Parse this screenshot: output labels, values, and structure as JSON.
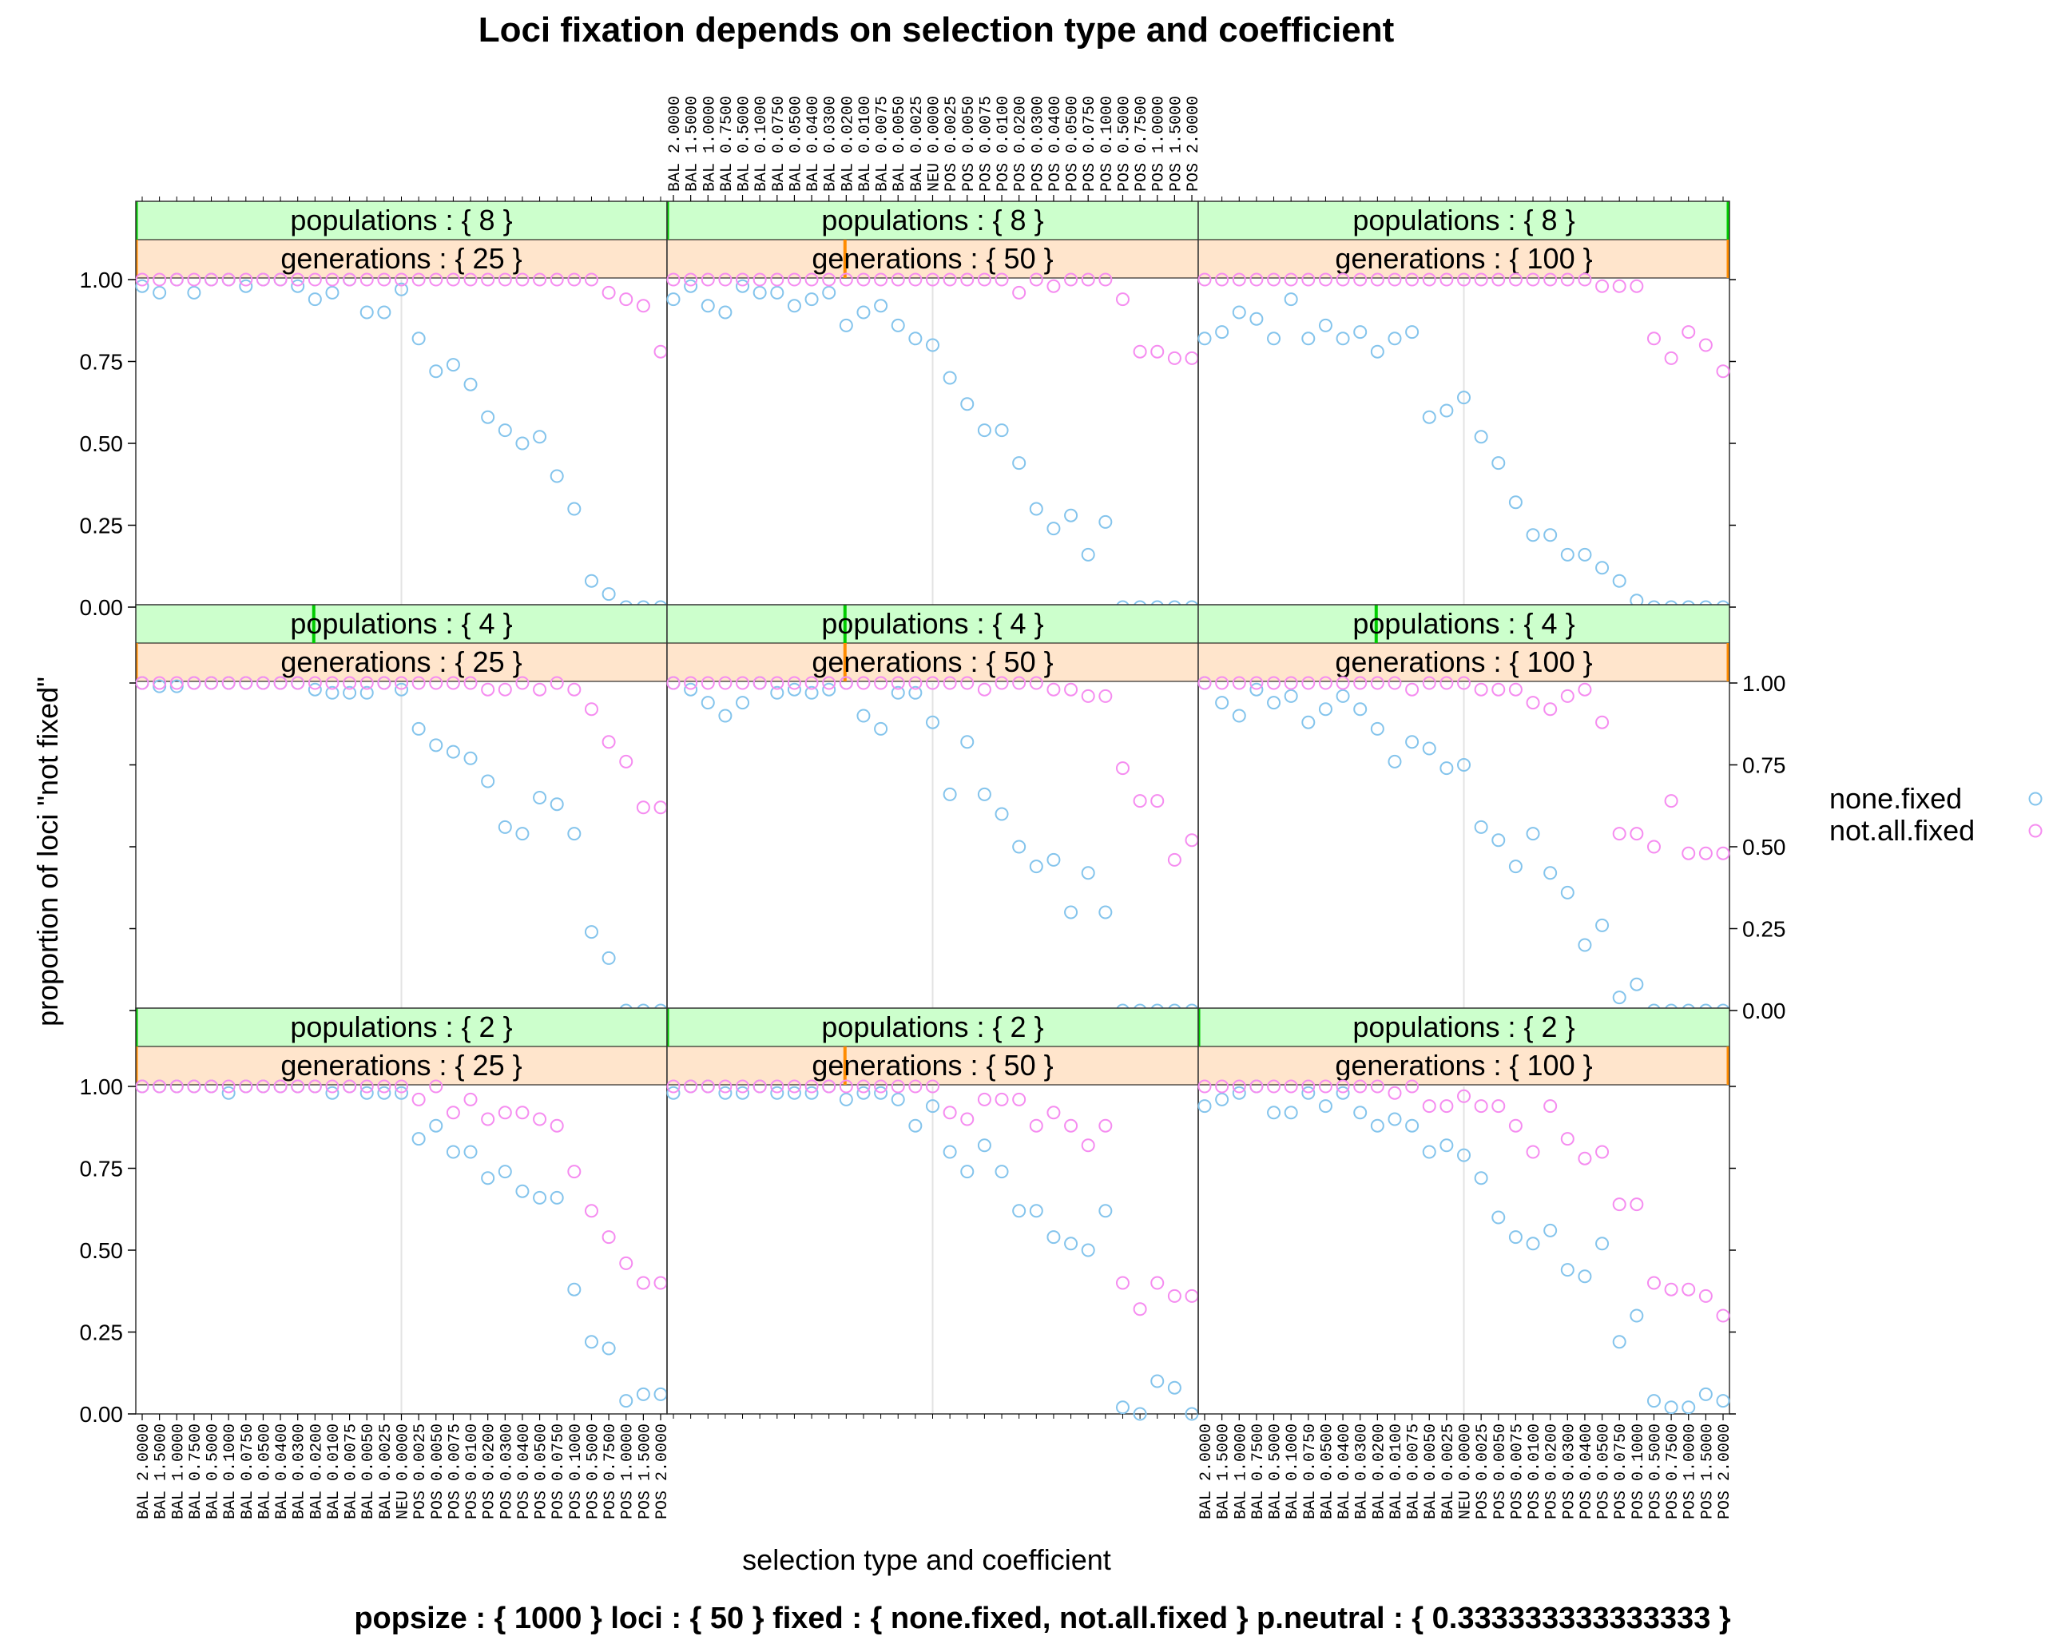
{
  "chart_data": {
    "type": "scatter",
    "title": "Loci fixation depends on selection type and coefficient",
    "xlabel": "selection type and coefficient",
    "ylabel": "proportion of loci \"not fixed\"",
    "subtitle": "popsize : { 1000 } loci : { 50 } fixed : { none.fixed, not.all.fixed } p.neutral : { 0.333333333333333 }",
    "ylim": [
      0,
      1
    ],
    "y_ticks": [
      "0.00",
      "0.25",
      "0.50",
      "0.75",
      "1.00"
    ],
    "categories": [
      "BAL 2.0000",
      "BAL 1.5000",
      "BAL 1.0000",
      "BAL 0.7500",
      "BAL 0.5000",
      "BAL 0.1000",
      "BAL 0.0750",
      "BAL 0.0500",
      "BAL 0.0400",
      "BAL 0.0300",
      "BAL 0.0200",
      "BAL 0.0100",
      "BAL 0.0075",
      "BAL 0.0050",
      "BAL 0.0025",
      "NEU 0.0000",
      "POS 0.0025",
      "POS 0.0050",
      "POS 0.0075",
      "POS 0.0100",
      "POS 0.0200",
      "POS 0.0300",
      "POS 0.0400",
      "POS 0.0500",
      "POS 0.0750",
      "POS 0.1000",
      "POS 0.5000",
      "POS 0.7500",
      "POS 1.0000",
      "POS 1.5000",
      "POS 2.0000"
    ],
    "legend": {
      "placement": "right",
      "entries": [
        "none.fixed",
        "not.all.fixed"
      ]
    },
    "colors": {
      "none.fixed": "#84c4ec",
      "not.all.fixed": "#f58cf0",
      "strip_outer": "#ccffcc",
      "strip_inner": "#ffe5cc",
      "strip_outer_mark": "#00cc00",
      "strip_inner_mark": "#ff8c00"
    },
    "panels": [
      {
        "populations": "populations : { 8 }",
        "generations": "generations : { 25 }",
        "none_fixed": [
          0.98,
          0.96,
          1.0,
          0.96,
          1.0,
          1.0,
          0.98,
          1.0,
          1.0,
          0.98,
          0.94,
          0.96,
          1.0,
          0.9,
          0.9,
          0.97,
          0.82,
          0.72,
          0.74,
          0.68,
          0.58,
          0.54,
          0.5,
          0.52,
          0.4,
          0.3,
          0.08,
          0.04,
          0.0,
          0.0,
          0.0
        ],
        "not_all_fixed": [
          1.0,
          1.0,
          1.0,
          1.0,
          1.0,
          1.0,
          1.0,
          1.0,
          1.0,
          1.0,
          1.0,
          1.0,
          1.0,
          1.0,
          1.0,
          1.0,
          1.0,
          1.0,
          1.0,
          1.0,
          1.0,
          1.0,
          1.0,
          1.0,
          1.0,
          1.0,
          1.0,
          0.96,
          0.94,
          0.92,
          0.78
        ]
      },
      {
        "populations": "populations : { 8 }",
        "generations": "generations : { 50 }",
        "none_fixed": [
          0.94,
          0.98,
          0.92,
          0.9,
          0.98,
          0.96,
          0.96,
          0.92,
          0.94,
          0.96,
          0.86,
          0.9,
          0.92,
          0.86,
          0.82,
          0.8,
          0.7,
          0.62,
          0.54,
          0.54,
          0.44,
          0.3,
          0.24,
          0.28,
          0.16,
          0.26,
          0.0,
          0.0,
          0.0,
          0.0,
          0.0
        ],
        "not_all_fixed": [
          1.0,
          1.0,
          1.0,
          1.0,
          1.0,
          1.0,
          1.0,
          1.0,
          1.0,
          1.0,
          1.0,
          1.0,
          1.0,
          1.0,
          1.0,
          1.0,
          1.0,
          1.0,
          1.0,
          1.0,
          0.96,
          1.0,
          0.98,
          1.0,
          1.0,
          1.0,
          0.94,
          0.78,
          0.78,
          0.76,
          0.76
        ]
      },
      {
        "populations": "populations : { 8 }",
        "generations": "generations : { 100 }",
        "none_fixed": [
          0.82,
          0.84,
          0.9,
          0.88,
          0.82,
          0.94,
          0.82,
          0.86,
          0.82,
          0.84,
          0.78,
          0.82,
          0.84,
          0.58,
          0.6,
          0.64,
          0.52,
          0.44,
          0.32,
          0.22,
          0.22,
          0.16,
          0.16,
          0.12,
          0.08,
          0.02,
          0.0,
          0.0,
          0.0,
          0.0,
          0.0
        ],
        "not_all_fixed": [
          1.0,
          1.0,
          1.0,
          1.0,
          1.0,
          1.0,
          1.0,
          1.0,
          1.0,
          1.0,
          1.0,
          1.0,
          1.0,
          1.0,
          1.0,
          1.0,
          1.0,
          1.0,
          1.0,
          1.0,
          1.0,
          1.0,
          1.0,
          0.98,
          0.98,
          0.98,
          0.82,
          0.76,
          0.84,
          0.8,
          0.72
        ]
      },
      {
        "populations": "populations : { 4 }",
        "generations": "generations : { 25 }",
        "none_fixed": [
          1.0,
          0.99,
          0.99,
          1.0,
          1.0,
          1.0,
          1.0,
          1.0,
          1.0,
          1.0,
          0.98,
          0.97,
          0.97,
          0.97,
          1.0,
          0.98,
          0.86,
          0.81,
          0.79,
          0.77,
          0.7,
          0.56,
          0.54,
          0.65,
          0.63,
          0.54,
          0.24,
          0.16,
          0.0,
          0.0,
          0.0
        ],
        "not_all_fixed": [
          1.0,
          1.0,
          1.0,
          1.0,
          1.0,
          1.0,
          1.0,
          1.0,
          1.0,
          1.0,
          1.0,
          1.0,
          1.0,
          1.0,
          1.0,
          1.0,
          1.0,
          1.0,
          1.0,
          1.0,
          0.98,
          0.98,
          1.0,
          0.98,
          1.0,
          0.98,
          0.92,
          0.82,
          0.76,
          0.62,
          0.62
        ]
      },
      {
        "populations": "populations : { 4 }",
        "generations": "generations : { 50 }",
        "none_fixed": [
          1.0,
          0.98,
          0.94,
          0.9,
          0.94,
          1.0,
          0.97,
          0.98,
          0.97,
          0.98,
          1.0,
          0.9,
          0.86,
          0.97,
          0.97,
          0.88,
          0.66,
          0.82,
          0.66,
          0.6,
          0.5,
          0.44,
          0.46,
          0.3,
          0.42,
          0.3,
          0.0,
          0.0,
          0.0,
          0.0,
          0.0
        ],
        "not_all_fixed": [
          1.0,
          1.0,
          1.0,
          1.0,
          1.0,
          1.0,
          1.0,
          1.0,
          1.0,
          1.0,
          1.0,
          1.0,
          1.0,
          1.0,
          1.0,
          1.0,
          1.0,
          1.0,
          0.98,
          1.0,
          1.0,
          1.0,
          0.98,
          0.98,
          0.96,
          0.96,
          0.74,
          0.64,
          0.64,
          0.46,
          0.52
        ]
      },
      {
        "populations": "populations : { 4 }",
        "generations": "generations : { 100 }",
        "none_fixed": [
          1.0,
          0.94,
          0.9,
          0.98,
          0.94,
          0.96,
          0.88,
          0.92,
          0.96,
          0.92,
          0.86,
          0.76,
          0.82,
          0.8,
          0.74,
          0.75,
          0.56,
          0.52,
          0.44,
          0.54,
          0.42,
          0.36,
          0.2,
          0.26,
          0.04,
          0.08,
          0.0,
          0.0,
          0.0,
          0.0,
          0.0
        ],
        "not_all_fixed": [
          1.0,
          1.0,
          1.0,
          1.0,
          1.0,
          1.0,
          1.0,
          1.0,
          1.0,
          1.0,
          1.0,
          1.0,
          0.98,
          1.0,
          1.0,
          1.0,
          0.98,
          0.98,
          0.98,
          0.94,
          0.92,
          0.96,
          0.98,
          0.88,
          0.54,
          0.54,
          0.5,
          0.64,
          0.48,
          0.48,
          0.48
        ]
      },
      {
        "populations": "populations : { 2 }",
        "generations": "generations : { 25 }",
        "none_fixed": [
          1.0,
          1.0,
          1.0,
          1.0,
          1.0,
          0.98,
          1.0,
          1.0,
          1.0,
          1.0,
          1.0,
          0.98,
          1.0,
          0.98,
          0.98,
          0.98,
          0.84,
          0.88,
          0.8,
          0.8,
          0.72,
          0.74,
          0.68,
          0.66,
          0.66,
          0.38,
          0.22,
          0.2,
          0.04,
          0.06,
          0.06
        ],
        "not_all_fixed": [
          1.0,
          1.0,
          1.0,
          1.0,
          1.0,
          1.0,
          1.0,
          1.0,
          1.0,
          1.0,
          1.0,
          1.0,
          1.0,
          1.0,
          1.0,
          1.0,
          0.96,
          1.0,
          0.92,
          0.96,
          0.9,
          0.92,
          0.92,
          0.9,
          0.88,
          0.74,
          0.62,
          0.54,
          0.46,
          0.4,
          0.4
        ]
      },
      {
        "populations": "populations : { 2 }",
        "generations": "generations : { 50 }",
        "none_fixed": [
          0.98,
          1.0,
          1.0,
          0.98,
          0.98,
          1.0,
          0.98,
          0.98,
          0.98,
          1.0,
          0.96,
          0.98,
          0.98,
          0.96,
          0.88,
          0.94,
          0.8,
          0.74,
          0.82,
          0.74,
          0.62,
          0.62,
          0.54,
          0.52,
          0.5,
          0.62,
          0.02,
          0.0,
          0.1,
          0.08,
          0.0
        ],
        "not_all_fixed": [
          1.0,
          1.0,
          1.0,
          1.0,
          1.0,
          1.0,
          1.0,
          1.0,
          1.0,
          1.0,
          1.0,
          1.0,
          1.0,
          1.0,
          1.0,
          1.0,
          0.92,
          0.9,
          0.96,
          0.96,
          0.96,
          0.88,
          0.92,
          0.88,
          0.82,
          0.88,
          0.4,
          0.32,
          0.4,
          0.36,
          0.36
        ]
      },
      {
        "populations": "populations : { 2 }",
        "generations": "generations : { 100 }",
        "none_fixed": [
          0.94,
          0.96,
          0.98,
          1.0,
          0.92,
          0.92,
          0.98,
          0.94,
          0.98,
          0.92,
          0.88,
          0.9,
          0.88,
          0.8,
          0.82,
          0.79,
          0.72,
          0.6,
          0.54,
          0.52,
          0.56,
          0.44,
          0.42,
          0.52,
          0.22,
          0.3,
          0.04,
          0.02,
          0.02,
          0.06,
          0.04
        ],
        "not_all_fixed": [
          1.0,
          1.0,
          1.0,
          1.0,
          1.0,
          1.0,
          1.0,
          1.0,
          1.0,
          1.0,
          1.0,
          0.98,
          1.0,
          0.94,
          0.94,
          0.97,
          0.94,
          0.94,
          0.88,
          0.8,
          0.94,
          0.84,
          0.78,
          0.8,
          0.64,
          0.64,
          0.4,
          0.38,
          0.38,
          0.36,
          0.3
        ]
      }
    ]
  }
}
